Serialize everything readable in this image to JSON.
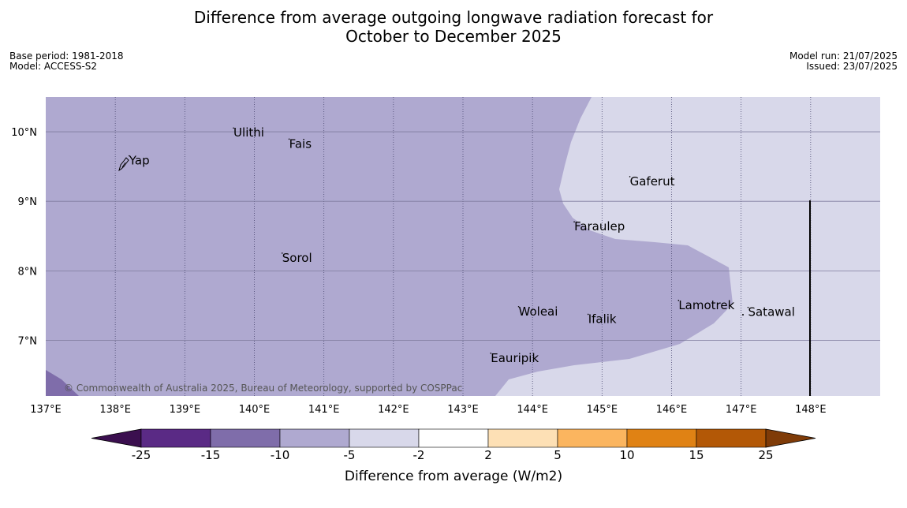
{
  "title": {
    "line1": "Difference from average outgoing longwave radiation forecast for",
    "line2": "October to December 2025"
  },
  "meta_left": {
    "base_period": "Base period: 1981-2018",
    "model": "Model: ACCESS-S2"
  },
  "meta_right": {
    "model_run": "Model run: 21/07/2025",
    "issued": "Issued: 23/07/2025"
  },
  "map": {
    "lon_range": [
      137,
      149
    ],
    "lat_range": [
      6.2,
      10.5
    ],
    "lon_ticks": [
      "137°E",
      "138°E",
      "139°E",
      "140°E",
      "141°E",
      "142°E",
      "143°E",
      "144°E",
      "145°E",
      "146°E",
      "147°E",
      "148°E"
    ],
    "lat_ticks": [
      "10°N",
      "9°N",
      "8°N",
      "7°N"
    ],
    "copyright": "© Commonwealth of Australia 2025, Bureau of Meteorology, supported by COSPPac",
    "places": [
      {
        "name": "Yap",
        "lon": 138.2,
        "lat": 9.53
      },
      {
        "name": "Ulithi",
        "lon": 139.7,
        "lat": 9.93
      },
      {
        "name": "Fais",
        "lon": 140.5,
        "lat": 9.77
      },
      {
        "name": "Gaferut",
        "lon": 145.4,
        "lat": 9.23
      },
      {
        "name": "Faraulep",
        "lon": 144.6,
        "lat": 8.58
      },
      {
        "name": "Sorol",
        "lon": 140.4,
        "lat": 8.13
      },
      {
        "name": "Lamotrek",
        "lon": 146.1,
        "lat": 7.45
      },
      {
        "name": "Satawal",
        "lon": 147.1,
        "lat": 7.35
      },
      {
        "name": "Woleai",
        "lon": 143.8,
        "lat": 7.36
      },
      {
        "name": "Ifalik",
        "lon": 144.8,
        "lat": 7.25
      },
      {
        "name": "Eauripik",
        "lon": 143.4,
        "lat": 6.69
      }
    ]
  },
  "colorbar": {
    "title": "Difference from average (W/m2)",
    "ticks": [
      "-25",
      "-15",
      "-10",
      "-5",
      "-2",
      "2",
      "5",
      "10",
      "15",
      "25"
    ],
    "colors": [
      "#3b0f4f",
      "#5a2a85",
      "#7f6daa",
      "#afa9d0",
      "#d8d8ea",
      "#ffffff",
      "#fde0b5",
      "#fbb55f",
      "#e08214",
      "#b35806",
      "#7f3b08"
    ]
  }
}
